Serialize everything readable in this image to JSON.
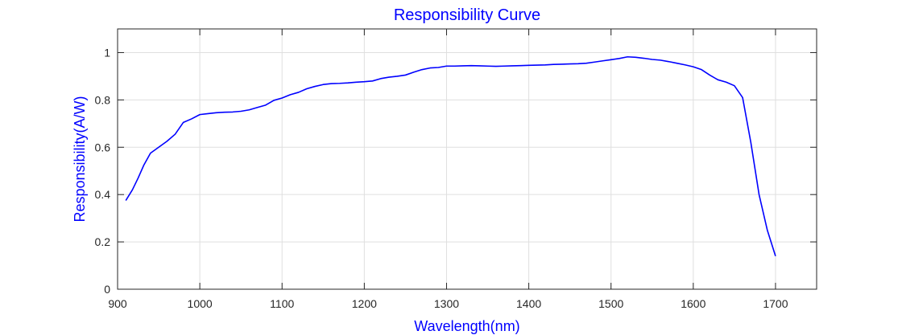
{
  "chart_data": {
    "type": "line",
    "title": "Responsibility Curve",
    "xlabel": "Wavelength(nm)",
    "ylabel": "Responsibility(A/W)",
    "xlim": [
      900,
      1750
    ],
    "ylim": [
      0,
      1.1
    ],
    "xticks": [
      900,
      1000,
      1100,
      1200,
      1300,
      1400,
      1500,
      1600,
      1700
    ],
    "xtick_labels": [
      "900",
      "1000",
      "1100",
      "1200",
      "1300",
      "1400",
      "1500",
      "1600",
      "1700"
    ],
    "yticks": [
      0,
      0.2,
      0.4,
      0.6,
      0.8,
      1
    ],
    "ytick_labels": [
      "0",
      "0.2",
      "0.4",
      "0.6",
      "0.8",
      "1"
    ],
    "grid": true,
    "legend": "none",
    "colors": {
      "line": "#0000ff",
      "title": "#0000ff",
      "axis_label": "#0000ff",
      "axes": "#262626",
      "grid": "#dfdfdf"
    },
    "series": [
      {
        "x": [
          910,
          918,
          925,
          932,
          940,
          950,
          960,
          970,
          980,
          990,
          1000,
          1010,
          1020,
          1030,
          1040,
          1050,
          1060,
          1070,
          1080,
          1090,
          1100,
          1110,
          1120,
          1130,
          1140,
          1150,
          1160,
          1170,
          1180,
          1190,
          1200,
          1210,
          1220,
          1230,
          1240,
          1250,
          1260,
          1270,
          1280,
          1290,
          1300,
          1310,
          1320,
          1330,
          1340,
          1350,
          1360,
          1370,
          1380,
          1390,
          1400,
          1410,
          1420,
          1430,
          1440,
          1450,
          1460,
          1470,
          1480,
          1490,
          1500,
          1510,
          1520,
          1530,
          1540,
          1550,
          1560,
          1570,
          1580,
          1590,
          1600,
          1610,
          1620,
          1630,
          1640,
          1650,
          1660,
          1670,
          1680,
          1690,
          1700
        ],
        "y": [
          0.375,
          0.42,
          0.47,
          0.525,
          0.575,
          0.6,
          0.625,
          0.655,
          0.705,
          0.72,
          0.738,
          0.742,
          0.746,
          0.748,
          0.749,
          0.752,
          0.758,
          0.768,
          0.778,
          0.798,
          0.808,
          0.822,
          0.832,
          0.847,
          0.857,
          0.865,
          0.869,
          0.87,
          0.872,
          0.875,
          0.877,
          0.88,
          0.89,
          0.896,
          0.9,
          0.905,
          0.917,
          0.928,
          0.935,
          0.937,
          0.943,
          0.943,
          0.944,
          0.945,
          0.944,
          0.943,
          0.942,
          0.943,
          0.944,
          0.945,
          0.946,
          0.947,
          0.948,
          0.95,
          0.951,
          0.952,
          0.953,
          0.955,
          0.96,
          0.965,
          0.97,
          0.975,
          0.982,
          0.98,
          0.976,
          0.971,
          0.968,
          0.962,
          0.955,
          0.948,
          0.94,
          0.928,
          0.905,
          0.885,
          0.875,
          0.86,
          0.81,
          0.62,
          0.4,
          0.25,
          0.14
        ]
      }
    ]
  }
}
